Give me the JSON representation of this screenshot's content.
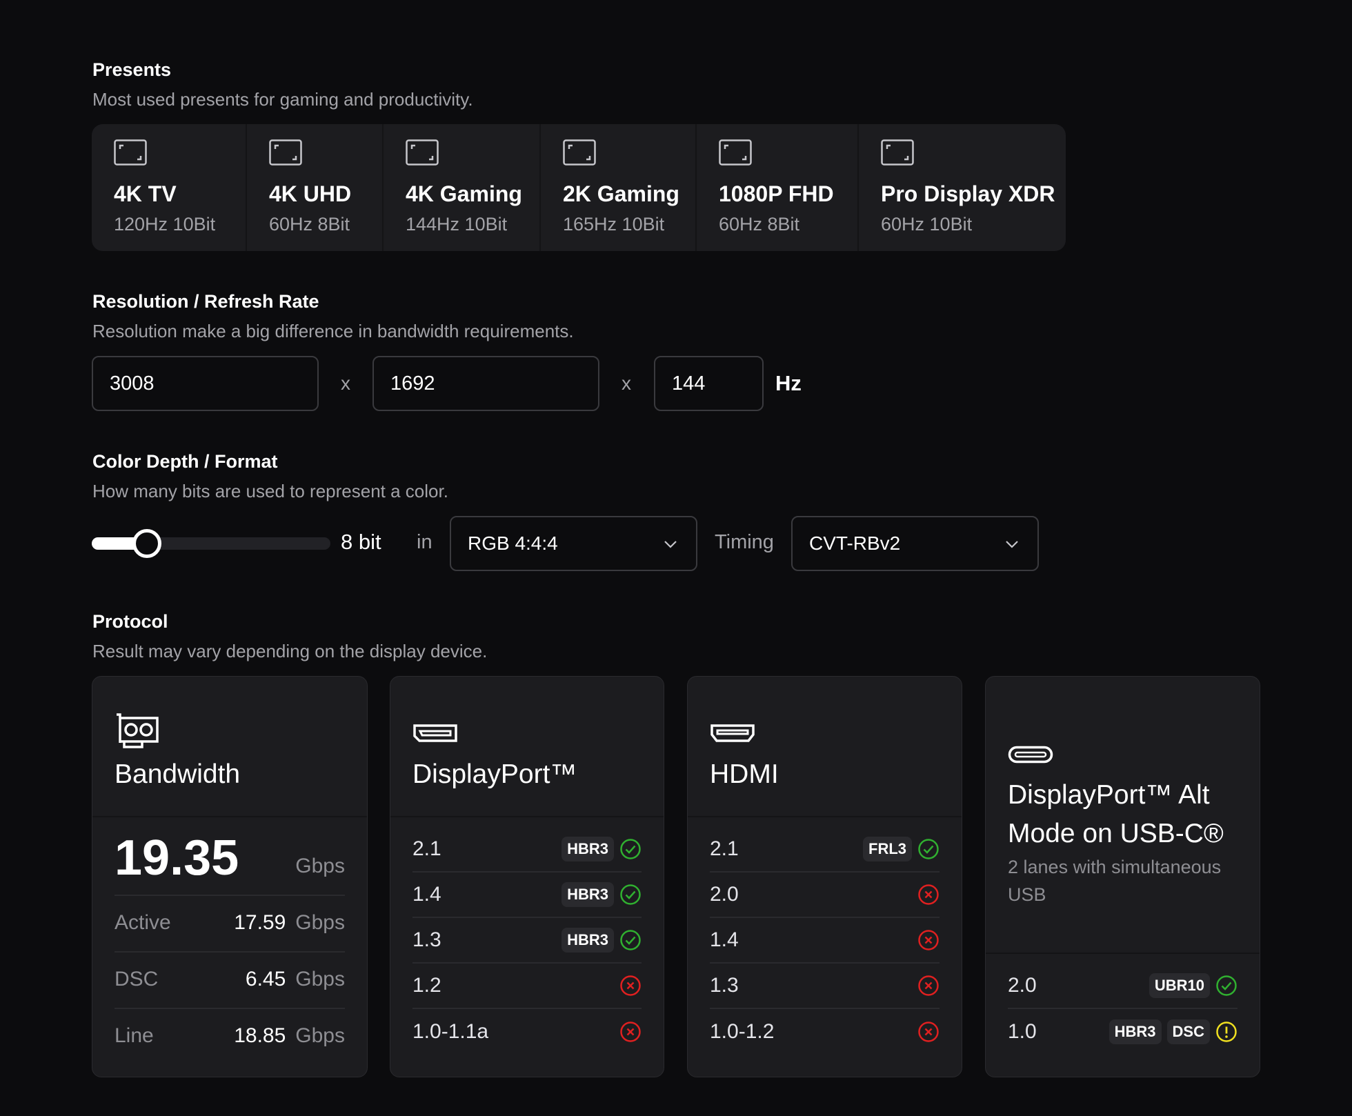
{
  "presets_section": {
    "title": "Presents",
    "subtitle": "Most used presents for gaming and productivity.",
    "items": [
      {
        "name": "4K TV",
        "spec": "120Hz 10Bit"
      },
      {
        "name": "4K UHD",
        "spec": "60Hz 8Bit"
      },
      {
        "name": "4K Gaming",
        "spec": "144Hz 10Bit"
      },
      {
        "name": "2K Gaming",
        "spec": "165Hz 10Bit"
      },
      {
        "name": "1080P FHD",
        "spec": "60Hz 8Bit"
      },
      {
        "name": "Pro Display XDR",
        "spec": "60Hz 10Bit"
      }
    ]
  },
  "resolution": {
    "title": "Resolution / Refresh Rate",
    "subtitle": "Resolution make a big difference in bandwidth requirements.",
    "width": "3008",
    "height": "1692",
    "refresh": "144",
    "separator": "x",
    "unit": "Hz"
  },
  "color": {
    "title": "Color Depth / Format",
    "subtitle": "How many bits are used to represent a color.",
    "depth_label": "8 bit",
    "slider_level": 0.23,
    "in_label": "in",
    "format": "RGB 4:4:4",
    "timing_label": "Timing",
    "timing": "CVT-RBv2"
  },
  "protocol": {
    "title": "Protocol",
    "subtitle": "Result may vary depending on the display device.",
    "bandwidth": {
      "title": "Bandwidth",
      "value": "19.35",
      "unit": "Gbps",
      "rows": [
        {
          "label": "Active",
          "value": "17.59",
          "unit": "Gbps"
        },
        {
          "label": "DSC",
          "value": "6.45",
          "unit": "Gbps"
        },
        {
          "label": "Line",
          "value": "18.85",
          "unit": "Gbps"
        }
      ]
    },
    "displayport": {
      "title": "DisplayPort™",
      "rows": [
        {
          "version": "2.1",
          "badges": [
            "HBR3"
          ],
          "status": "ok"
        },
        {
          "version": "1.4",
          "badges": [
            "HBR3"
          ],
          "status": "ok"
        },
        {
          "version": "1.3",
          "badges": [
            "HBR3"
          ],
          "status": "ok"
        },
        {
          "version": "1.2",
          "badges": [],
          "status": "fail"
        },
        {
          "version": "1.0-1.1a",
          "badges": [],
          "status": "fail"
        }
      ]
    },
    "hdmi": {
      "title": "HDMI",
      "rows": [
        {
          "version": "2.1",
          "badges": [
            "FRL3"
          ],
          "status": "ok"
        },
        {
          "version": "2.0",
          "badges": [],
          "status": "fail"
        },
        {
          "version": "1.4",
          "badges": [],
          "status": "fail"
        },
        {
          "version": "1.3",
          "badges": [],
          "status": "fail"
        },
        {
          "version": "1.0-1.2",
          "badges": [],
          "status": "fail"
        }
      ]
    },
    "usbc": {
      "title_line1": "DisplayPort™ Alt",
      "title_line2": "Mode on USB-C®",
      "subtitle": "2 lanes with simultaneous USB",
      "rows": [
        {
          "version": "2.0",
          "badges": [
            "UBR10"
          ],
          "status": "ok"
        },
        {
          "version": "1.0",
          "badges": [
            "HBR3",
            "DSC"
          ],
          "status": "warn"
        }
      ]
    }
  },
  "colors": {
    "ok": "#30b030",
    "fail": "#e02020",
    "warn": "#f0e020"
  },
  "icons": {
    "preset": "display-frame-icon",
    "bandwidth": "graphics-card-icon",
    "displayport": "displayport-connector-icon",
    "hdmi": "hdmi-connector-icon",
    "usbc": "usb-c-connector-icon"
  }
}
